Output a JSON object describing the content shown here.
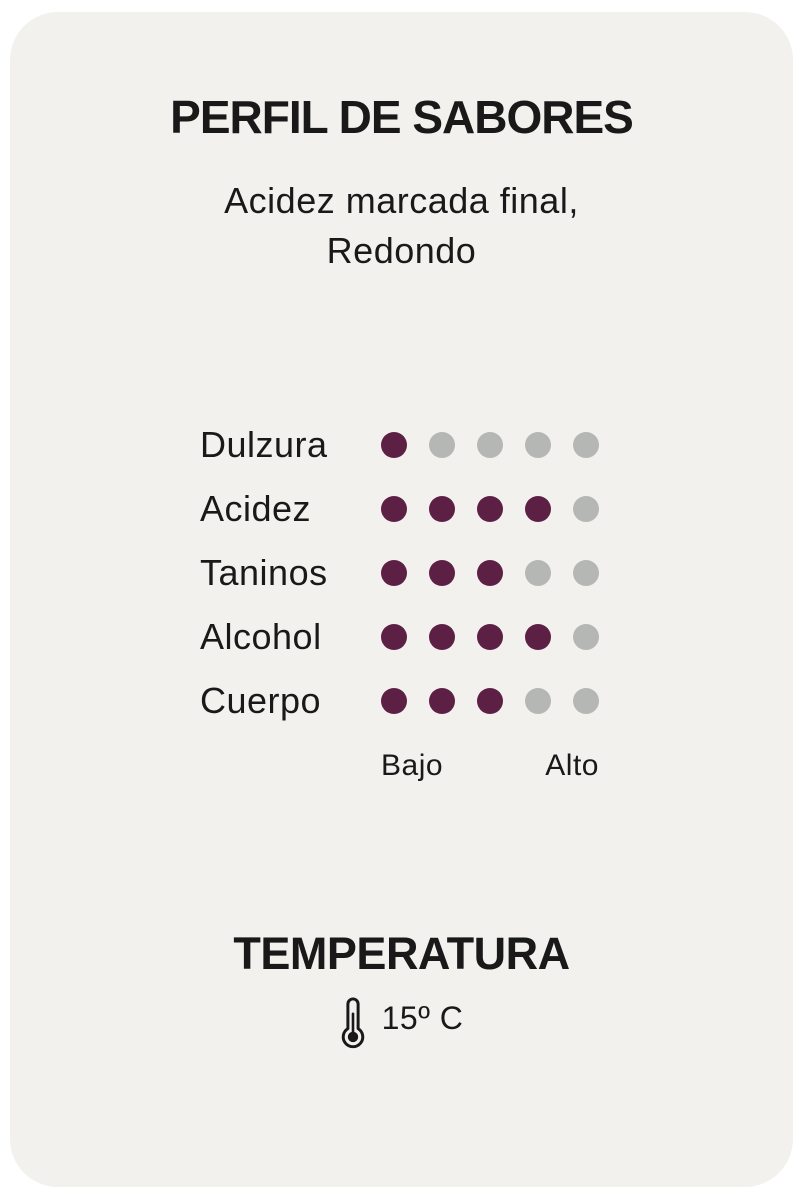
{
  "card": {
    "title": "PERFIL DE SABORES",
    "subtitle": "Acidez marcada final, Redondo",
    "scale": {
      "low_label": "Bajo",
      "high_label": "Alto",
      "max": 5
    },
    "temperature": {
      "title": "TEMPERATURA",
      "value": "15º C",
      "icon": "thermometer-icon"
    }
  },
  "chart_data": {
    "type": "bar",
    "style": "dot-rating",
    "title": "PERFIL DE SABORES",
    "subtitle": "Acidez marcada final, Redondo",
    "categories": [
      "Dulzura",
      "Acidez",
      "Taninos",
      "Alcohol",
      "Cuerpo"
    ],
    "values": [
      1,
      4,
      3,
      4,
      3
    ],
    "scale_max": 5,
    "axis_labels": [
      "Bajo",
      "Alto"
    ],
    "legend": "none",
    "grid": false
  },
  "colors": {
    "filled_dot": "#5b2044",
    "empty_dot": "#b5b7b4",
    "card_bg": "#f2f1ee",
    "page_bg": "#ffffff",
    "text": "#191919"
  }
}
